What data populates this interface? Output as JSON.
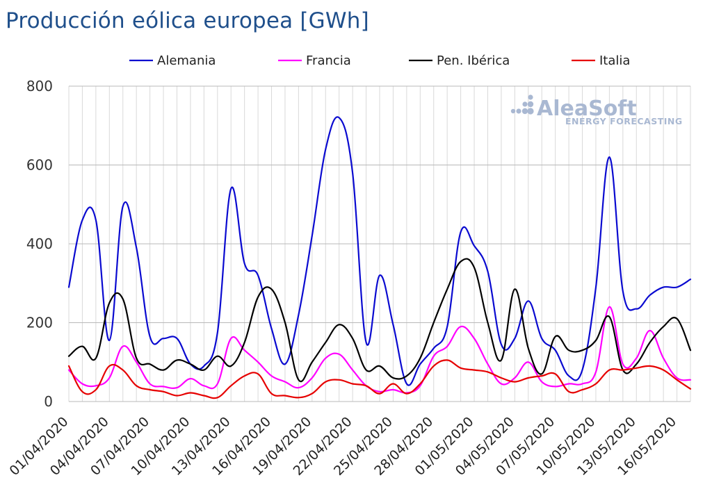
{
  "chart_data": {
    "type": "line",
    "title": "Producción eólica europea [GWh]",
    "xlabel": "",
    "ylabel": "",
    "ylim": [
      0,
      800
    ],
    "yticks": [
      0,
      200,
      400,
      600,
      800
    ],
    "grid": true,
    "legend_position": "top",
    "x": [
      "01/04/2020",
      "02/04/2020",
      "03/04/2020",
      "04/04/2020",
      "05/04/2020",
      "06/04/2020",
      "07/04/2020",
      "08/04/2020",
      "09/04/2020",
      "10/04/2020",
      "11/04/2020",
      "12/04/2020",
      "13/04/2020",
      "14/04/2020",
      "15/04/2020",
      "16/04/2020",
      "17/04/2020",
      "18/04/2020",
      "19/04/2020",
      "20/04/2020",
      "21/04/2020",
      "22/04/2020",
      "23/04/2020",
      "24/04/2020",
      "25/04/2020",
      "26/04/2020",
      "27/04/2020",
      "28/04/2020",
      "29/04/2020",
      "30/04/2020",
      "01/05/2020",
      "02/05/2020",
      "03/05/2020",
      "04/05/2020",
      "05/05/2020",
      "06/05/2020",
      "07/05/2020",
      "08/05/2020",
      "09/05/2020",
      "10/05/2020",
      "11/05/2020",
      "12/05/2020",
      "13/05/2020",
      "14/05/2020",
      "15/05/2020",
      "16/05/2020",
      "17/05/2020"
    ],
    "xticks": [
      "01/04/2020",
      "04/04/2020",
      "07/04/2020",
      "10/04/2020",
      "13/04/2020",
      "16/04/2020",
      "19/04/2020",
      "22/04/2020",
      "25/04/2020",
      "28/04/2020",
      "01/05/2020",
      "04/05/2020",
      "07/05/2020",
      "10/05/2020",
      "13/05/2020",
      "16/05/2020"
    ],
    "series": [
      {
        "name": "Alemania",
        "color": "#0a0ad0",
        "values": [
          290,
          460,
          460,
          155,
          495,
          390,
          165,
          160,
          160,
          95,
          90,
          175,
          540,
          350,
          320,
          185,
          95,
          220,
          420,
          640,
          720,
          580,
          150,
          320,
          195,
          45,
          95,
          135,
          190,
          430,
          395,
          330,
          145,
          160,
          255,
          160,
          130,
          65,
          80,
          290,
          620,
          280,
          235,
          270,
          290,
          290,
          310
        ]
      },
      {
        "name": "Francia",
        "color": "#ff00ff",
        "values": [
          80,
          45,
          40,
          60,
          140,
          100,
          45,
          38,
          35,
          58,
          40,
          45,
          160,
          130,
          100,
          65,
          50,
          35,
          60,
          110,
          120,
          80,
          40,
          25,
          30,
          22,
          40,
          115,
          140,
          190,
          160,
          95,
          45,
          60,
          100,
          50,
          38,
          45,
          45,
          75,
          240,
          95,
          110,
          180,
          110,
          60,
          55
        ]
      },
      {
        "name": "Pen. Ibérica",
        "color": "#000000",
        "values": [
          115,
          140,
          110,
          250,
          260,
          110,
          95,
          80,
          105,
          95,
          80,
          115,
          90,
          150,
          265,
          285,
          200,
          55,
          100,
          150,
          195,
          160,
          80,
          90,
          60,
          65,
          110,
          200,
          285,
          355,
          340,
          200,
          105,
          285,
          135,
          70,
          165,
          130,
          130,
          155,
          215,
          80,
          95,
          150,
          190,
          210,
          130
        ]
      },
      {
        "name": "Italia",
        "color": "#e60000",
        "values": [
          90,
          25,
          30,
          90,
          80,
          40,
          30,
          25,
          15,
          22,
          15,
          10,
          40,
          65,
          70,
          20,
          15,
          10,
          20,
          50,
          55,
          45,
          40,
          20,
          45,
          20,
          45,
          90,
          105,
          85,
          80,
          75,
          60,
          50,
          60,
          65,
          70,
          25,
          30,
          45,
          80,
          80,
          85,
          90,
          80,
          55,
          32
        ]
      }
    ]
  },
  "watermark": {
    "name": "AleaSoft",
    "subtitle": "ENERGY FORECASTING"
  }
}
